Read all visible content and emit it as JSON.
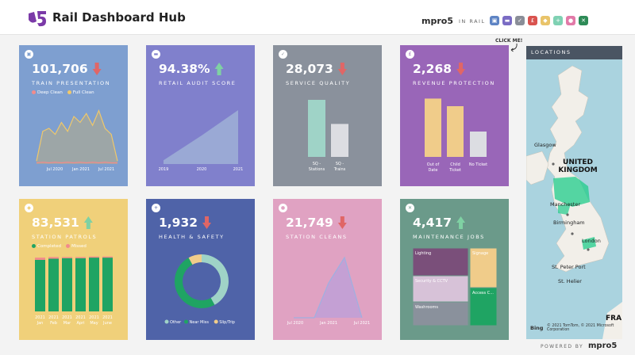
{
  "header": {
    "title": "Rail Dashboard Hub",
    "brand": "mpro5",
    "brand_suffix": "IN RAIL",
    "nav_icons": [
      {
        "name": "train-icon",
        "color": "#5e84c4",
        "glyph": "▣"
      },
      {
        "name": "ticket-icon",
        "color": "#7a6cc4",
        "glyph": "▬"
      },
      {
        "name": "check-icon",
        "color": "#8a8e98",
        "glyph": "✓"
      },
      {
        "name": "pound-icon",
        "color": "#d9534f",
        "glyph": "£"
      },
      {
        "name": "shield-icon",
        "color": "#e9c46a",
        "glyph": "◆"
      },
      {
        "name": "cross-icon",
        "color": "#7fd1b3",
        "glyph": "+"
      },
      {
        "name": "bubbles-icon",
        "color": "#e27aa8",
        "glyph": "●"
      },
      {
        "name": "tools-icon",
        "color": "#2e8b57",
        "glyph": "✕"
      }
    ]
  },
  "click_me": "CLICK ME!",
  "cards": {
    "train": {
      "value": "101,706",
      "label": "TRAIN PRESENTATION",
      "trend": "down",
      "color": "#7e9fd0",
      "legend": [
        {
          "label": "Deep Clean",
          "color": "#f28b8b"
        },
        {
          "label": "Full Clean",
          "color": "#f0c86a"
        }
      ],
      "ticks": [
        "Jul 2020",
        "Jan 2021",
        "Jul 2021"
      ],
      "full_clean": [
        0.05,
        0.55,
        0.6,
        0.5,
        0.7,
        0.55,
        0.8,
        0.7,
        0.85,
        0.65,
        0.9,
        0.6,
        0.5,
        0.05
      ],
      "deep_clean": [
        0.02,
        0.03,
        0.02,
        0.03,
        0.02,
        0.03,
        0.02,
        0.03,
        0.02,
        0.03,
        0.02,
        0.03,
        0.02,
        0.02
      ]
    },
    "retail": {
      "value": "94.38%",
      "label": "RETAIL AUDIT SCORE",
      "trend": "up",
      "color": "#8080cc",
      "ticks": [
        "2019",
        "2020",
        "2021"
      ],
      "values": [
        0.06,
        0.45,
        0.85
      ]
    },
    "service": {
      "value": "28,073",
      "label": "SERVICE QUALITY",
      "trend": "down",
      "color": "#8a919c",
      "categories": [
        "SQ - Stations",
        "SQ - Trains"
      ],
      "values": [
        0.9,
        0.52
      ],
      "bar_colors": [
        "#9fd3c7",
        "#dcdde2"
      ]
    },
    "revenue": {
      "value": "2,268",
      "label": "REVENUE PROTECTION",
      "trend": "down",
      "color": "#9966b8",
      "categories": [
        "Out of Date",
        "Child Ticket",
        "No Ticket"
      ],
      "values": [
        0.92,
        0.8,
        0.4
      ],
      "bar_colors": [
        "#f0cc8a",
        "#f0cc8a",
        "#dcdde2"
      ]
    },
    "station_patrols": {
      "value": "83,531",
      "label": "STATION PATROLS",
      "trend": "up",
      "color": "#f0d07a",
      "legend": [
        {
          "label": "Completed",
          "color": "#1fa463"
        },
        {
          "label": "Missed",
          "color": "#f28b8b"
        }
      ],
      "categories": [
        "2021 Jan",
        "2021 Feb",
        "2021 Mar",
        "2021 April",
        "2021 May",
        "2021 June"
      ],
      "completed": [
        0.93,
        0.95,
        0.96,
        0.96,
        0.97,
        0.97
      ],
      "missed": [
        0.04,
        0.03,
        0.02,
        0.02,
        0.02,
        0.02
      ]
    },
    "health": {
      "value": "1,932",
      "label": "HEALTH & SAFETY",
      "trend": "down",
      "color": "#4f63a8",
      "legend": [
        {
          "label": "Other",
          "color": "#9fd3c7"
        },
        {
          "label": "Near Miss",
          "color": "#1fa463"
        },
        {
          "label": "Slip/Trip",
          "color": "#f0cc8a"
        }
      ],
      "slices": [
        0.42,
        0.5,
        0.08
      ]
    },
    "station_cleans": {
      "value": "21,749",
      "label": "STATION CLEANS",
      "trend": "down",
      "color": "#e0a2c2",
      "ticks": [
        "Jul 2020",
        "Jan 2021",
        "Jul 2021"
      ],
      "values": [
        0.0,
        0.0,
        0.55,
        0.95,
        0.0
      ]
    },
    "maintenance": {
      "value": "4,417",
      "label": "MAINTENANCE JOBS",
      "trend": "up",
      "color": "#6b9a8a",
      "cells": [
        {
          "label": "Lighting",
          "color": "#7a4f7a"
        },
        {
          "label": "Signage",
          "color": "#f0cc8a"
        },
        {
          "label": "Security & CCTV",
          "color": "#d7c2d8"
        },
        {
          "label": "Washrooms",
          "color": "#8a919c"
        },
        {
          "label": "Access C...",
          "color": "#1fa463"
        }
      ]
    }
  },
  "map": {
    "header": "LOCATIONS",
    "labels": {
      "glasgow": "Glasgow",
      "uk": "UNITED KINGDOM",
      "manchester": "Manchester",
      "birmingham": "Birmingham",
      "london": "London",
      "st_peter_port": "St. Peter Port",
      "st_helier": "St. Helier",
      "fra": "FRA"
    },
    "provider": "Bing",
    "copyright": "© 2021 TomTom, © 2021 Microsoft Corporation"
  },
  "footer": {
    "powered_by": "POWERED BY",
    "brand": "mpro5"
  }
}
